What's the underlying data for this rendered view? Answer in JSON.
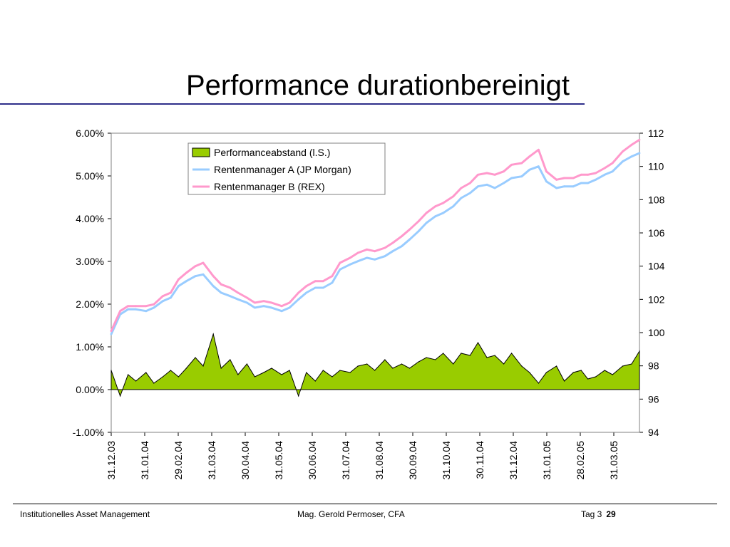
{
  "slide": {
    "title": "Performance durationbereinigt"
  },
  "footer": {
    "left": "Institutionelles Asset Management",
    "center": "Mag. Gerold Permoser, CFA",
    "day": "Tag 3",
    "page": "29"
  },
  "colors": {
    "area_fill": "#99cc00",
    "manager_a": "#99ccff",
    "manager_b": "#ff99cc",
    "title_rule": "#2e2e8a"
  },
  "chart_data": {
    "type": "area+line",
    "title": "",
    "x_tick_labels": [
      "31.12.03",
      "31.01.04",
      "29.02.04",
      "31.03.04",
      "30.04.04",
      "31.05.04",
      "30.06.04",
      "31.07.04",
      "31.08.04",
      "30.09.04",
      "31.10.04",
      "30.11.04",
      "31.12.04",
      "31.01.05",
      "28.02.05",
      "31.03.05"
    ],
    "y_left": {
      "ylim": [
        -0.01,
        0.06
      ],
      "ticks": [
        -0.01,
        0,
        0.01,
        0.02,
        0.03,
        0.04,
        0.05,
        0.06
      ],
      "tick_labels": [
        "-1.00%",
        "0.00%",
        "1.00%",
        "2.00%",
        "3.00%",
        "4.00%",
        "5.00%",
        "6.00%"
      ]
    },
    "y_right": {
      "ylim": [
        94,
        112
      ],
      "ticks": [
        94,
        96,
        98,
        100,
        102,
        104,
        106,
        108,
        110,
        112
      ],
      "tick_labels": [
        "94",
        "96",
        "98",
        "100",
        "102",
        "104",
        "106",
        "108",
        "110",
        "112"
      ]
    },
    "grid": false,
    "legend_position": "top-left",
    "series": [
      {
        "name": "Performanceabstand (l.S.)",
        "axis": "left",
        "kind": "area",
        "color": "#99cc00",
        "x": [
          "2003-12-31",
          "2004-01-08",
          "2004-01-15",
          "2004-01-22",
          "2004-01-31",
          "2004-02-07",
          "2004-02-15",
          "2004-02-22",
          "2004-02-29",
          "2004-03-07",
          "2004-03-15",
          "2004-03-22",
          "2004-03-31",
          "2004-04-07",
          "2004-04-15",
          "2004-04-22",
          "2004-04-30",
          "2004-05-07",
          "2004-05-15",
          "2004-05-22",
          "2004-05-31",
          "2004-06-07",
          "2004-06-15",
          "2004-06-22",
          "2004-06-30",
          "2004-07-07",
          "2004-07-15",
          "2004-07-22",
          "2004-07-31",
          "2004-08-07",
          "2004-08-15",
          "2004-08-22",
          "2004-08-31",
          "2004-09-07",
          "2004-09-15",
          "2004-09-22",
          "2004-09-30",
          "2004-10-07",
          "2004-10-15",
          "2004-10-22",
          "2004-10-31",
          "2004-11-07",
          "2004-11-15",
          "2004-11-22",
          "2004-11-30",
          "2004-12-07",
          "2004-12-15",
          "2004-12-22",
          "2004-12-31",
          "2005-01-07",
          "2005-01-15",
          "2005-01-22",
          "2005-01-31",
          "2005-02-07",
          "2005-02-15",
          "2005-02-22",
          "2005-02-28",
          "2005-03-07",
          "2005-03-15",
          "2005-03-22",
          "2005-03-31",
          "2005-04-08",
          "2005-04-15"
        ],
        "values": [
          0.0045,
          -0.0015,
          0.0035,
          0.002,
          0.004,
          0.0015,
          0.003,
          0.0045,
          0.003,
          0.005,
          0.0075,
          0.0055,
          0.013,
          0.005,
          0.007,
          0.0035,
          0.006,
          0.003,
          0.004,
          0.005,
          0.0035,
          0.0045,
          -0.0015,
          0.004,
          0.002,
          0.0045,
          0.003,
          0.0045,
          0.004,
          0.0055,
          0.006,
          0.0045,
          0.007,
          0.005,
          0.006,
          0.005,
          0.0065,
          0.0075,
          0.007,
          0.0085,
          0.006,
          0.0085,
          0.008,
          0.011,
          0.0075,
          0.008,
          0.006,
          0.0085,
          0.0055,
          0.004,
          0.0015,
          0.004,
          0.0055,
          0.002,
          0.004,
          0.0045,
          0.0025,
          0.003,
          0.0045,
          0.0035,
          0.0055,
          0.006,
          0.009
        ]
      },
      {
        "name": "Rentenmanager A (JP Morgan)",
        "axis": "right",
        "kind": "line",
        "color": "#99ccff",
        "x": [
          "2003-12-31",
          "2004-01-08",
          "2004-01-15",
          "2004-01-22",
          "2004-01-31",
          "2004-02-07",
          "2004-02-15",
          "2004-02-22",
          "2004-02-29",
          "2004-03-07",
          "2004-03-15",
          "2004-03-22",
          "2004-03-31",
          "2004-04-07",
          "2004-04-15",
          "2004-04-22",
          "2004-04-30",
          "2004-05-07",
          "2004-05-15",
          "2004-05-22",
          "2004-05-31",
          "2004-06-07",
          "2004-06-15",
          "2004-06-22",
          "2004-06-30",
          "2004-07-07",
          "2004-07-15",
          "2004-07-22",
          "2004-07-31",
          "2004-08-07",
          "2004-08-15",
          "2004-08-22",
          "2004-08-31",
          "2004-09-07",
          "2004-09-15",
          "2004-09-22",
          "2004-09-30",
          "2004-10-07",
          "2004-10-15",
          "2004-10-22",
          "2004-10-31",
          "2004-11-07",
          "2004-11-15",
          "2004-11-22",
          "2004-11-30",
          "2004-12-07",
          "2004-12-15",
          "2004-12-22",
          "2004-12-31",
          "2005-01-07",
          "2005-01-15",
          "2005-01-22",
          "2005-01-31",
          "2005-02-07",
          "2005-02-15",
          "2005-02-22",
          "2005-02-28",
          "2005-03-07",
          "2005-03-15",
          "2005-03-22",
          "2005-03-31",
          "2005-04-08",
          "2005-04-15"
        ],
        "values": [
          99.9,
          101.1,
          101.4,
          101.4,
          101.3,
          101.5,
          101.9,
          102.1,
          102.8,
          103.1,
          103.4,
          103.5,
          102.8,
          102.4,
          102.2,
          102.0,
          101.8,
          101.5,
          101.6,
          101.5,
          101.3,
          101.5,
          102.0,
          102.4,
          102.7,
          102.7,
          103.0,
          103.8,
          104.1,
          104.3,
          104.5,
          104.4,
          104.6,
          104.9,
          105.2,
          105.6,
          106.1,
          106.6,
          107.0,
          107.2,
          107.6,
          108.1,
          108.4,
          108.8,
          108.9,
          108.7,
          109.0,
          109.3,
          109.4,
          109.8,
          110.0,
          109.1,
          108.7,
          108.8,
          108.8,
          109.0,
          109.0,
          109.2,
          109.5,
          109.7,
          110.3,
          110.6,
          110.8
        ]
      },
      {
        "name": "Rentenmanager B (REX)",
        "axis": "right",
        "kind": "line",
        "color": "#ff99cc",
        "x": [
          "2003-12-31",
          "2004-01-08",
          "2004-01-15",
          "2004-01-22",
          "2004-01-31",
          "2004-02-07",
          "2004-02-15",
          "2004-02-22",
          "2004-02-29",
          "2004-03-07",
          "2004-03-15",
          "2004-03-22",
          "2004-03-31",
          "2004-04-07",
          "2004-04-15",
          "2004-04-22",
          "2004-04-30",
          "2004-05-07",
          "2004-05-15",
          "2004-05-22",
          "2004-05-31",
          "2004-06-07",
          "2004-06-15",
          "2004-06-22",
          "2004-06-30",
          "2004-07-07",
          "2004-07-15",
          "2004-07-22",
          "2004-07-31",
          "2004-08-07",
          "2004-08-15",
          "2004-08-22",
          "2004-08-31",
          "2004-09-07",
          "2004-09-15",
          "2004-09-22",
          "2004-09-30",
          "2004-10-07",
          "2004-10-15",
          "2004-10-22",
          "2004-10-31",
          "2004-11-07",
          "2004-11-15",
          "2004-11-22",
          "2004-11-30",
          "2004-12-07",
          "2004-12-15",
          "2004-12-22",
          "2004-12-31",
          "2005-01-07",
          "2005-01-15",
          "2005-01-22",
          "2005-01-31",
          "2005-02-07",
          "2005-02-15",
          "2005-02-22",
          "2005-02-28",
          "2005-03-07",
          "2005-03-15",
          "2005-03-22",
          "2005-03-31",
          "2005-04-08",
          "2005-04-15"
        ],
        "values": [
          100.1,
          101.3,
          101.6,
          101.6,
          101.6,
          101.7,
          102.2,
          102.4,
          103.2,
          103.6,
          104.0,
          104.2,
          103.4,
          102.9,
          102.7,
          102.4,
          102.1,
          101.8,
          101.9,
          101.8,
          101.6,
          101.8,
          102.4,
          102.8,
          103.1,
          103.1,
          103.4,
          104.2,
          104.5,
          104.8,
          105.0,
          104.9,
          105.1,
          105.4,
          105.8,
          106.2,
          106.7,
          107.2,
          107.6,
          107.8,
          108.2,
          108.7,
          109.0,
          109.5,
          109.6,
          109.5,
          109.7,
          110.1,
          110.2,
          110.6,
          111.0,
          109.7,
          109.2,
          109.3,
          109.3,
          109.5,
          109.5,
          109.6,
          109.9,
          110.2,
          110.9,
          111.3,
          111.6
        ]
      }
    ]
  }
}
